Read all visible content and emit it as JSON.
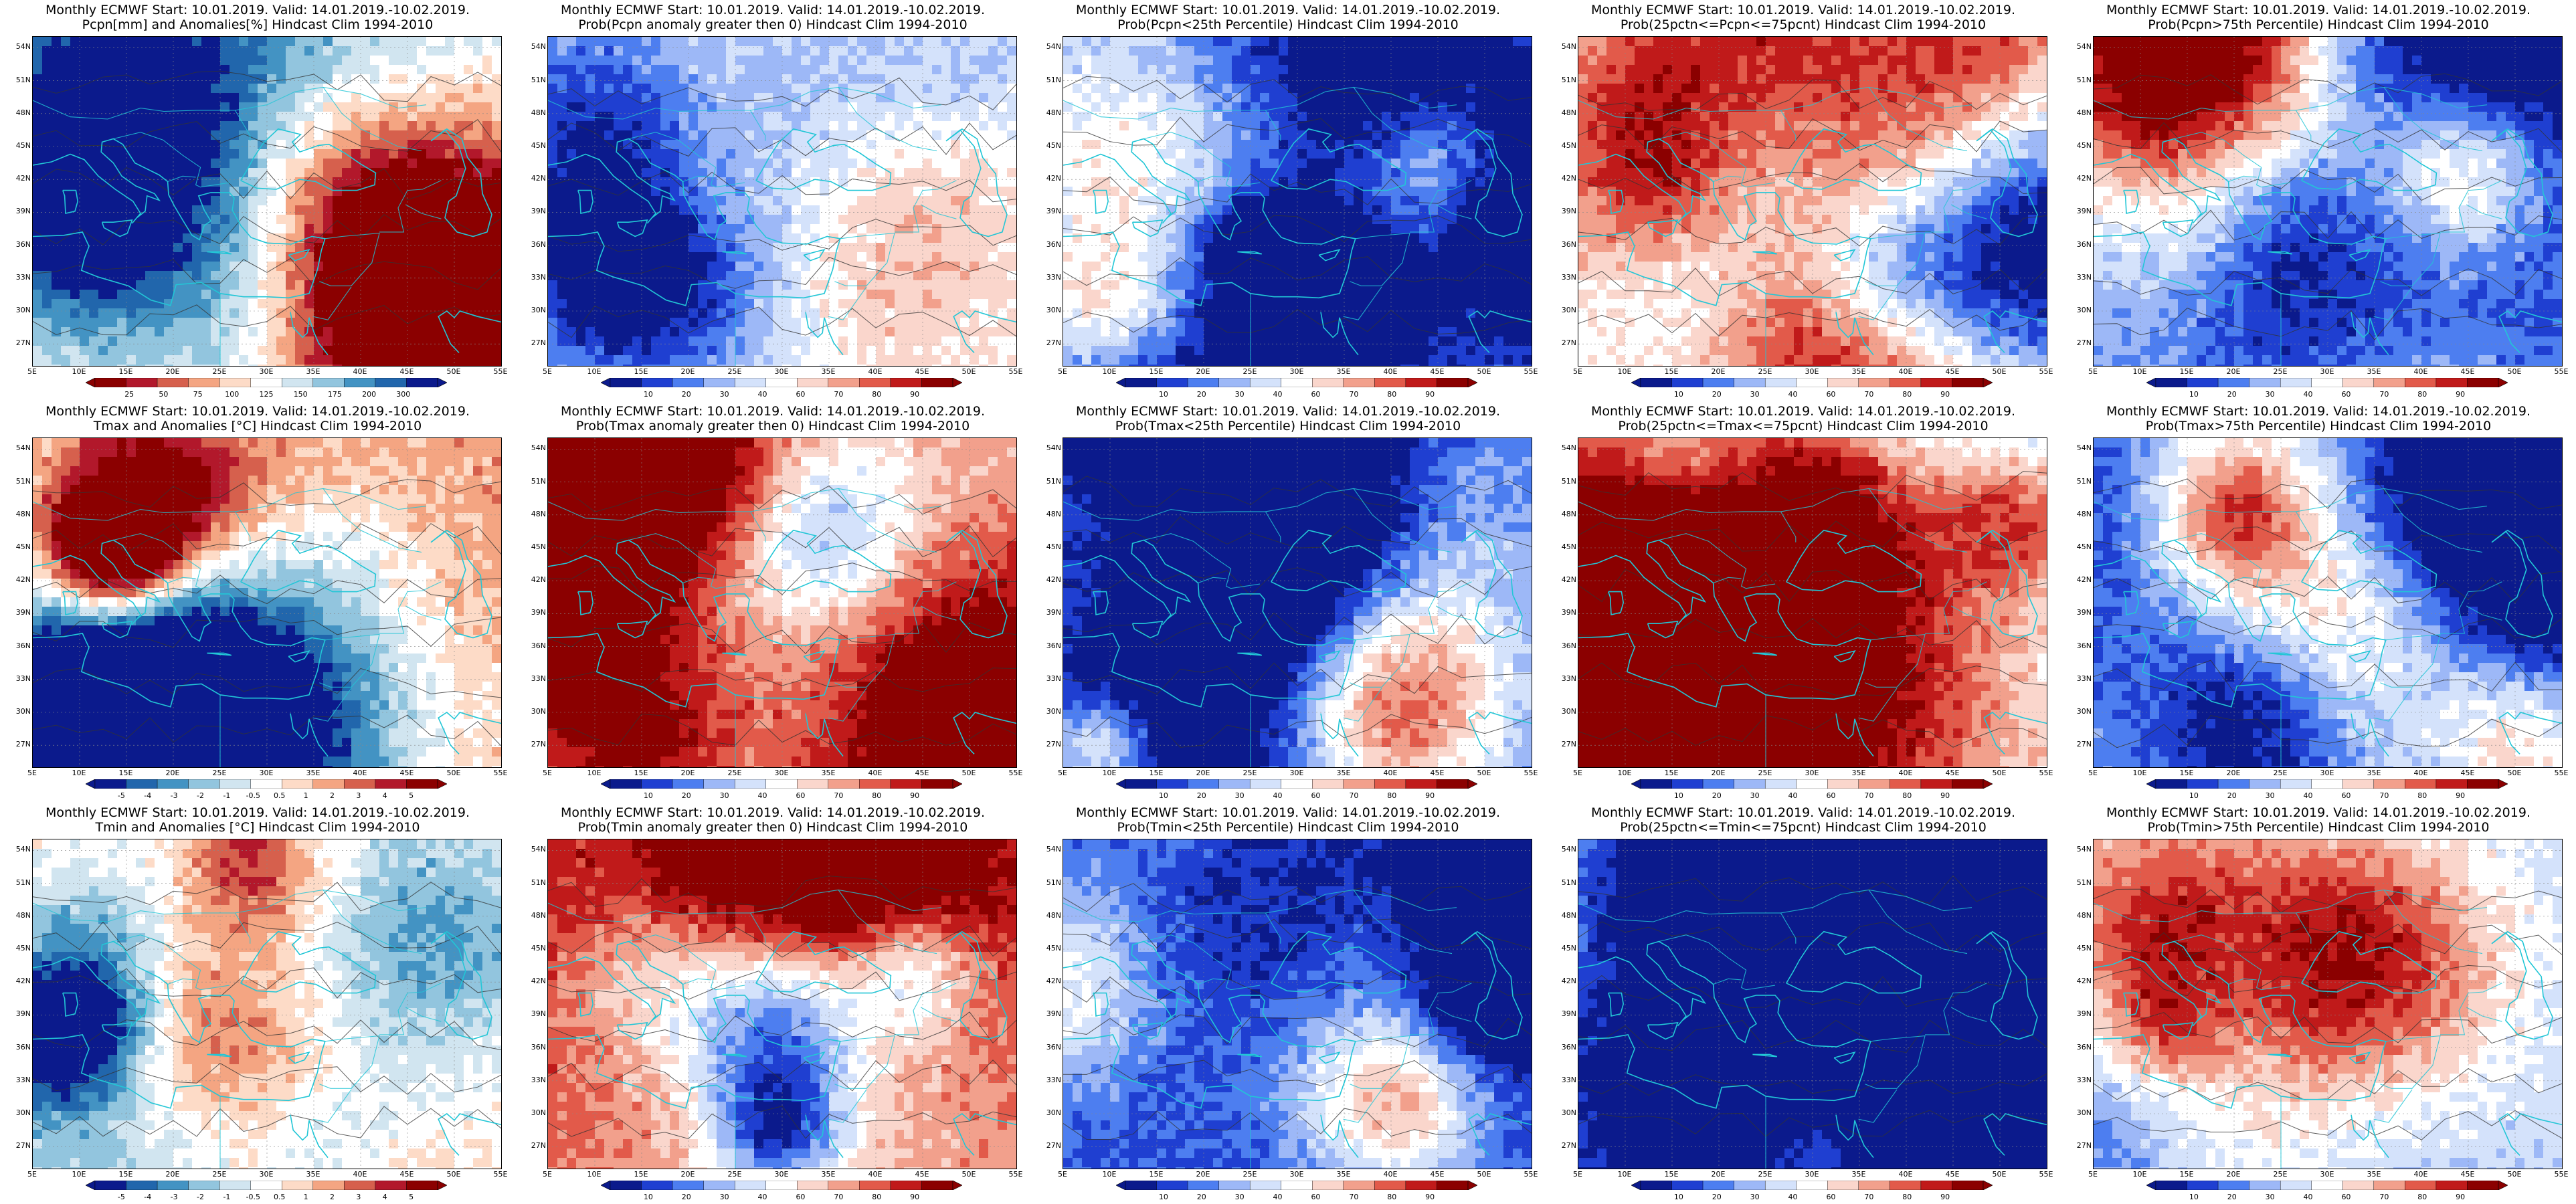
{
  "latitude_labels": [
    "54N",
    "51N",
    "48N",
    "45N",
    "42N",
    "39N",
    "36N",
    "33N",
    "30N",
    "27N"
  ],
  "longitude_labels": [
    "5E",
    "10E",
    "15E",
    "20E",
    "25E",
    "30E",
    "35E",
    "40E",
    "45E",
    "50E",
    "55E"
  ],
  "palettes": {
    "pcpn": [
      "#8b0000",
      "#b2182b",
      "#d6604d",
      "#f4a582",
      "#fddbc7",
      "#ffffff",
      "#d1e5f0",
      "#92c5de",
      "#4393c3",
      "#2166ac",
      "#0b1a8c"
    ],
    "anom": [
      "#0b1a8c",
      "#2166ac",
      "#4393c3",
      "#92c5de",
      "#d1e5f0",
      "#ffffff",
      "#fddbc7",
      "#f4a582",
      "#d6604d",
      "#b2182b",
      "#8b0000"
    ],
    "prob": [
      "#0b1a8c",
      "#1f3fd1",
      "#4d7ef0",
      "#9db8f7",
      "#d4e2fb",
      "#ffffff",
      "#fad6cc",
      "#f2a08c",
      "#e25a4a",
      "#c01a1a",
      "#8b0000"
    ]
  },
  "coast_color": "#22c6d6",
  "panels": [
    {
      "line1": "Monthly ECMWF Start: 10.01.2019. Valid: 14.01.2019.-10.02.2019.",
      "line2": "Pcpn[mm] and Anomalies[%] Hindcast Clim 1994-2010",
      "scale": "pcpn",
      "colorbar_ticks": [
        "25",
        "50",
        "75",
        "100",
        "125",
        "150",
        "175",
        "200",
        "300"
      ],
      "seed": 11,
      "bias": -0.05
    },
    {
      "line1": "Monthly ECMWF Start: 10.01.2019. Valid: 14.01.2019.-10.02.2019.",
      "line2": "Prob(Pcpn anomaly greater then 0) Hindcast Clim 1994-2010",
      "scale": "prob",
      "colorbar_ticks": [
        "10",
        "20",
        "30",
        "40",
        "60",
        "70",
        "80",
        "90"
      ],
      "seed": 12,
      "bias": -0.05
    },
    {
      "line1": "Monthly ECMWF Start: 10.01.2019. Valid: 14.01.2019.-10.02.2019.",
      "line2": "Prob(Pcpn<25th Percentile) Hindcast Clim 1994-2010",
      "scale": "prob",
      "colorbar_ticks": [
        "10",
        "20",
        "30",
        "40",
        "60",
        "70",
        "80",
        "90"
      ],
      "seed": 13,
      "bias": -0.78
    },
    {
      "line1": "Monthly ECMWF Start: 10.01.2019. Valid: 14.01.2019.-10.02.2019.",
      "line2": "Prob(25pctn<=Pcpn<=75pcnt) Hindcast Clim 1994-2010",
      "scale": "prob",
      "colorbar_ticks": [
        "10",
        "20",
        "30",
        "40",
        "60",
        "70",
        "80",
        "90"
      ],
      "seed": 14,
      "bias": -0.1
    },
    {
      "line1": "Monthly ECMWF Start: 10.01.2019. Valid: 14.01.2019.-10.02.2019.",
      "line2": "Prob(Pcpn>75th Percentile) Hindcast Clim 1994-2010",
      "scale": "prob",
      "colorbar_ticks": [
        "10",
        "20",
        "30",
        "40",
        "60",
        "70",
        "80",
        "90"
      ],
      "seed": 15,
      "bias": -0.35
    },
    {
      "line1": "Monthly ECMWF Start: 10.01.2019. Valid: 14.01.2019.-10.02.2019.",
      "line2": "Tmax and Anomalies [°C] Hindcast Clim 1994-2010",
      "scale": "anom",
      "colorbar_ticks": [
        "-5",
        "-4",
        "-3",
        "-2",
        "-1",
        "-0.5",
        "0.5",
        "1",
        "2",
        "3",
        "4",
        "5"
      ],
      "seed": 21,
      "bias": 0.3
    },
    {
      "line1": "Monthly ECMWF Start: 10.01.2019. Valid: 14.01.2019.-10.02.2019.",
      "line2": "Prob(Tmax anomaly greater then 0) Hindcast Clim 1994-2010",
      "scale": "prob",
      "colorbar_ticks": [
        "10",
        "20",
        "30",
        "40",
        "60",
        "70",
        "80",
        "90"
      ],
      "seed": 22,
      "bias": 0.35
    },
    {
      "line1": "Monthly ECMWF Start: 10.01.2019. Valid: 14.01.2019.-10.02.2019.",
      "line2": "Prob(Tmax<25th Percentile) Hindcast Clim 1994-2010",
      "scale": "prob",
      "colorbar_ticks": [
        "10",
        "20",
        "30",
        "40",
        "60",
        "70",
        "80",
        "90"
      ],
      "seed": 23,
      "bias": -0.72
    },
    {
      "line1": "Monthly ECMWF Start: 10.01.2019. Valid: 14.01.2019.-10.02.2019.",
      "line2": "Prob(25pctn<=Tmax<=75pcnt) Hindcast Clim 1994-2010",
      "scale": "prob",
      "colorbar_ticks": [
        "10",
        "20",
        "30",
        "40",
        "60",
        "70",
        "80",
        "90"
      ],
      "seed": 24,
      "bias": 0.05
    },
    {
      "line1": "Monthly ECMWF Start: 10.01.2019. Valid: 14.01.2019.-10.02.2019.",
      "line2": "Prob(Tmax>75th Percentile) Hindcast Clim 1994-2010",
      "scale": "prob",
      "colorbar_ticks": [
        "10",
        "20",
        "30",
        "40",
        "60",
        "70",
        "80",
        "90"
      ],
      "seed": 25,
      "bias": -0.4
    },
    {
      "line1": "Monthly ECMWF Start: 10.01.2019. Valid: 14.01.2019.-10.02.2019.",
      "line2": "Tmin and Anomalies [°C] Hindcast Clim 1994-2010",
      "scale": "anom",
      "colorbar_ticks": [
        "-5",
        "-4",
        "-3",
        "-2",
        "-1",
        "-0.5",
        "0.5",
        "1",
        "2",
        "3",
        "4",
        "5"
      ],
      "seed": 31,
      "bias": 0.2
    },
    {
      "line1": "Monthly ECMWF Start: 10.01.2019. Valid: 14.01.2019.-10.02.2019.",
      "line2": "Prob(Tmin anomaly greater then 0) Hindcast Clim 1994-2010",
      "scale": "prob",
      "colorbar_ticks": [
        "10",
        "20",
        "30",
        "40",
        "60",
        "70",
        "80",
        "90"
      ],
      "seed": 32,
      "bias": 0.45
    },
    {
      "line1": "Monthly ECMWF Start: 10.01.2019. Valid: 14.01.2019.-10.02.2019.",
      "line2": "Prob(Tmin<25th Percentile) Hindcast Clim 1994-2010",
      "scale": "prob",
      "colorbar_ticks": [
        "10",
        "20",
        "30",
        "40",
        "60",
        "70",
        "80",
        "90"
      ],
      "seed": 33,
      "bias": -0.8
    },
    {
      "line1": "Monthly ECMWF Start: 10.01.2019. Valid: 14.01.2019.-10.02.2019.",
      "line2": "Prob(25pctn<=Tmin<=75pcnt) Hindcast Clim 1994-2010",
      "scale": "prob",
      "colorbar_ticks": [
        "10",
        "20",
        "30",
        "40",
        "60",
        "70",
        "80",
        "90"
      ],
      "seed": 34,
      "bias": 0.05
    },
    {
      "line1": "Monthly ECMWF Start: 10.01.2019. Valid: 14.01.2019.-10.02.2019.",
      "line2": "Prob(Tmin>75th Percentile) Hindcast Clim 1994-2010",
      "scale": "prob",
      "colorbar_ticks": [
        "10",
        "20",
        "30",
        "40",
        "60",
        "70",
        "80",
        "90"
      ],
      "seed": 35,
      "bias": -0.3
    }
  ]
}
